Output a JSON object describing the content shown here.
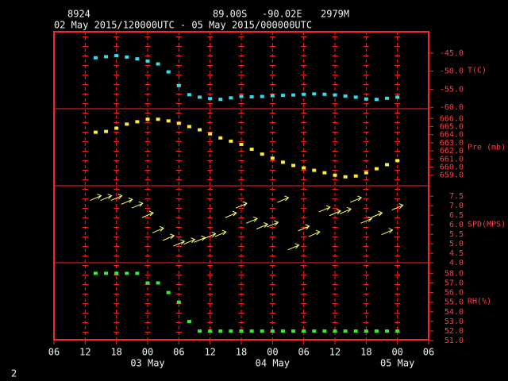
{
  "header": {
    "station": "8924",
    "lat": "89.00S",
    "lon": "-90.02E",
    "elev": "2979M",
    "period": "02 May 2015/120000UTC - 05 May 2015/000000UTC",
    "page": "2"
  },
  "chart_data": [
    {
      "type": "scatter",
      "label": "T(C)",
      "color": "#33ddee",
      "x": [
        "2015-05-02 14:00",
        "2015-05-02 16:00",
        "2015-05-02 18:00",
        "2015-05-02 20:00",
        "2015-05-02 22:00",
        "2015-05-03 00:00",
        "2015-05-03 02:00",
        "2015-05-03 04:00",
        "2015-05-03 06:00",
        "2015-05-03 08:00",
        "2015-05-03 10:00",
        "2015-05-03 12:00",
        "2015-05-03 14:00",
        "2015-05-03 16:00",
        "2015-05-03 18:00",
        "2015-05-03 20:00",
        "2015-05-03 22:00",
        "2015-05-04 00:00",
        "2015-05-04 02:00",
        "2015-05-04 04:00",
        "2015-05-04 06:00",
        "2015-05-04 08:00",
        "2015-05-04 10:00",
        "2015-05-04 12:00",
        "2015-05-04 14:00",
        "2015-05-04 16:00",
        "2015-05-04 18:00",
        "2015-05-04 20:00",
        "2015-05-04 22:00",
        "2015-05-05 00:00"
      ],
      "values": [
        -46.3,
        -46.0,
        -45.7,
        -46.1,
        -46.6,
        -47.2,
        -48.0,
        -50.2,
        -54.0,
        -56.5,
        -57.2,
        -57.6,
        -57.8,
        -57.4,
        -57.0,
        -57.1,
        -57.0,
        -56.8,
        -56.7,
        -56.6,
        -56.4,
        -56.3,
        -56.4,
        -56.6,
        -56.9,
        -57.2,
        -57.7,
        -57.8,
        -57.5,
        -57.2
      ],
      "ylim": [
        -60.4,
        -39.1
      ],
      "yticks": [
        {
          "value": -45,
          "label": "-45.0"
        },
        {
          "value": -50,
          "label": "-50.0"
        },
        {
          "value": -55,
          "label": "-55.0"
        },
        {
          "value": -60,
          "label": "-60.0"
        }
      ]
    },
    {
      "type": "scatter",
      "label": "Pre (mb)",
      "color": "#ffee33",
      "x": [
        "2015-05-02 14:00",
        "2015-05-02 16:00",
        "2015-05-02 18:00",
        "2015-05-02 20:00",
        "2015-05-02 22:00",
        "2015-05-03 00:00",
        "2015-05-03 02:00",
        "2015-05-03 04:00",
        "2015-05-03 06:00",
        "2015-05-03 08:00",
        "2015-05-03 10:00",
        "2015-05-03 12:00",
        "2015-05-03 14:00",
        "2015-05-03 16:00",
        "2015-05-03 18:00",
        "2015-05-03 20:00",
        "2015-05-03 22:00",
        "2015-05-04 00:00",
        "2015-05-04 02:00",
        "2015-05-04 04:00",
        "2015-05-04 06:00",
        "2015-05-04 08:00",
        "2015-05-04 10:00",
        "2015-05-04 12:00",
        "2015-05-04 14:00",
        "2015-05-04 16:00",
        "2015-05-04 18:00",
        "2015-05-04 20:00",
        "2015-05-04 22:00",
        "2015-05-05 00:00"
      ],
      "values": [
        664.3,
        664.4,
        664.8,
        665.3,
        665.6,
        665.9,
        665.9,
        665.7,
        665.4,
        665.0,
        664.6,
        664.1,
        663.6,
        663.2,
        662.8,
        662.2,
        661.6,
        661.1,
        660.6,
        660.2,
        659.9,
        659.6,
        659.3,
        659.0,
        658.8,
        658.9,
        659.3,
        659.8,
        660.3,
        660.8
      ],
      "ylim": [
        657.7,
        667.2
      ],
      "yticks": [
        {
          "value": 666,
          "label": "666.0"
        },
        {
          "value": 665,
          "label": "665.0"
        },
        {
          "value": 664,
          "label": "664.0"
        },
        {
          "value": 663,
          "label": "663.0"
        },
        {
          "value": 662,
          "label": "662.0"
        },
        {
          "value": 661,
          "label": "661.0"
        },
        {
          "value": 660,
          "label": "660.0"
        },
        {
          "value": 659,
          "label": "659.0"
        }
      ]
    },
    {
      "type": "arrow",
      "label": "SPD(MPS)",
      "color": "#ffff66",
      "x": [
        "2015-05-02 14:00",
        "2015-05-02 16:00",
        "2015-05-02 18:00",
        "2015-05-02 20:00",
        "2015-05-02 22:00",
        "2015-05-03 00:00",
        "2015-05-03 02:00",
        "2015-05-03 04:00",
        "2015-05-03 06:00",
        "2015-05-03 08:00",
        "2015-05-03 10:00",
        "2015-05-03 12:00",
        "2015-05-03 14:00",
        "2015-05-03 16:00",
        "2015-05-03 18:00",
        "2015-05-03 20:00",
        "2015-05-03 22:00",
        "2015-05-04 00:00",
        "2015-05-04 02:00",
        "2015-05-04 04:00",
        "2015-05-04 06:00",
        "2015-05-04 08:00",
        "2015-05-04 10:00",
        "2015-05-04 12:00",
        "2015-05-04 14:00",
        "2015-05-04 16:00",
        "2015-05-04 18:00",
        "2015-05-04 20:00",
        "2015-05-04 22:00",
        "2015-05-05 00:00"
      ],
      "values": [
        7.4,
        7.4,
        7.4,
        7.2,
        7.0,
        6.5,
        5.7,
        5.3,
        5.0,
        5.1,
        5.2,
        5.4,
        5.5,
        6.5,
        7.0,
        6.2,
        5.9,
        6.0,
        7.3,
        4.8,
        5.8,
        5.5,
        6.8,
        6.6,
        6.7,
        7.3,
        6.2,
        6.5,
        5.6,
        6.9
      ],
      "ylim": [
        4.0,
        8.05
      ],
      "yticks": [
        7.5,
        {
          "value": 7,
          "label": "7.0"
        },
        6.5,
        {
          "value": 6,
          "label": "6.0"
        },
        5.5,
        {
          "value": 5,
          "label": "5.0"
        },
        4.5,
        {
          "value": 4,
          "label": "4.0"
        }
      ]
    },
    {
      "type": "scatter",
      "label": "RH(%)",
      "color": "#33ee33",
      "x": [
        "2015-05-02 14:00",
        "2015-05-02 16:00",
        "2015-05-02 18:00",
        "2015-05-02 20:00",
        "2015-05-02 22:00",
        "2015-05-03 00:00",
        "2015-05-03 02:00",
        "2015-05-03 04:00",
        "2015-05-03 06:00",
        "2015-05-03 08:00",
        "2015-05-03 10:00",
        "2015-05-03 12:00",
        "2015-05-03 14:00",
        "2015-05-03 16:00",
        "2015-05-03 18:00",
        "2015-05-03 20:00",
        "2015-05-03 22:00",
        "2015-05-04 00:00",
        "2015-05-04 02:00",
        "2015-05-04 04:00",
        "2015-05-04 06:00",
        "2015-05-04 08:00",
        "2015-05-04 10:00",
        "2015-05-04 12:00",
        "2015-05-04 14:00",
        "2015-05-04 16:00",
        "2015-05-04 18:00",
        "2015-05-04 20:00",
        "2015-05-04 22:00",
        "2015-05-05 00:00"
      ],
      "values": [
        58,
        58,
        58,
        58,
        58,
        57,
        57,
        56,
        55,
        53,
        52,
        52,
        52,
        52,
        52,
        52,
        52,
        52,
        52,
        52,
        52,
        52,
        52,
        52,
        52,
        52,
        52,
        52,
        52,
        52
      ],
      "ylim": [
        51.1,
        59.1
      ],
      "yticks": [
        {
          "value": 58,
          "label": "58.0"
        },
        {
          "value": 57,
          "label": "57.0"
        },
        {
          "value": 56,
          "label": "56.0"
        },
        {
          "value": 55,
          "label": "55.0"
        },
        {
          "value": 54,
          "label": "54.0"
        },
        {
          "value": 53,
          "label": "53.0"
        },
        {
          "value": 52,
          "label": "52.0"
        },
        {
          "value": 51,
          "label": "51.0"
        }
      ],
      "xlim": [
        "2015-05-02 06:00",
        "2015-05-05 06:00"
      ],
      "xticks": [
        {
          "value": "2015-05-02 06:00",
          "label": "06"
        },
        {
          "value": "2015-05-02 12:00",
          "label": "12"
        },
        {
          "value": "2015-05-02 18:00",
          "label": "18"
        },
        {
          "value": "2015-05-03 00:00",
          "label": "00"
        },
        {
          "value": "2015-05-03 06:00",
          "label": "06"
        },
        {
          "value": "2015-05-03 12:00",
          "label": "12"
        },
        {
          "value": "2015-05-03 18:00",
          "label": "18"
        },
        {
          "value": "2015-05-04 00:00",
          "label": "00"
        },
        {
          "value": "2015-05-04 06:00",
          "label": "06"
        },
        {
          "value": "2015-05-04 12:00",
          "label": "12"
        },
        {
          "value": "2015-05-04 18:00",
          "label": "18"
        },
        {
          "value": "2015-05-05 00:00",
          "label": "00"
        },
        {
          "value": "2015-05-05 06:00",
          "label": "06"
        }
      ],
      "date_labels": [
        {
          "value": "2015-05-03 00:00",
          "label": "03 May"
        },
        {
          "value": "2015-05-04 00:00",
          "label": "04 May"
        },
        {
          "value": "2015-05-05 00:00",
          "label": "05 May"
        }
      ]
    }
  ]
}
